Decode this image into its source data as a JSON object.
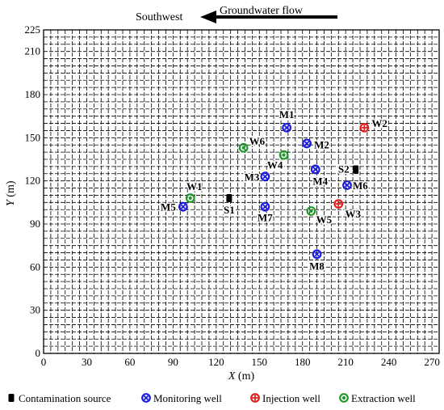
{
  "chart_data": {
    "type": "scatter",
    "title": "",
    "xlabel": "X (m)",
    "ylabel": "Y (m)",
    "xlim": [
      0,
      275
    ],
    "ylim": [
      0,
      225
    ],
    "xticks": [
      0,
      30,
      60,
      90,
      120,
      150,
      180,
      210,
      240,
      270
    ],
    "yticks": [
      0,
      30,
      60,
      90,
      120,
      150,
      180,
      210,
      225
    ],
    "grid": true,
    "flow_annotation": {
      "label": "Groundwater flow",
      "direction_label": "Southwest"
    },
    "series": [
      {
        "name": "Contamination source",
        "kind": "source",
        "color": "#000000",
        "points": [
          {
            "label": "S1",
            "x": 129,
            "y": 108
          },
          {
            "label": "S2",
            "x": 217,
            "y": 128
          }
        ]
      },
      {
        "name": "Monitoring well",
        "kind": "monitoring",
        "color": "#1c1cdc",
        "points": [
          {
            "label": "M1",
            "x": 169,
            "y": 157
          },
          {
            "label": "M2",
            "x": 183,
            "y": 146
          },
          {
            "label": "M3",
            "x": 154,
            "y": 123
          },
          {
            "label": "M4",
            "x": 189,
            "y": 128
          },
          {
            "label": "M5",
            "x": 97,
            "y": 102
          },
          {
            "label": "M6",
            "x": 211,
            "y": 117
          },
          {
            "label": "M7",
            "x": 154,
            "y": 102
          },
          {
            "label": "M8",
            "x": 190,
            "y": 69
          }
        ]
      },
      {
        "name": "Injection well",
        "kind": "injection",
        "color": "#e02020",
        "points": [
          {
            "label": "W2",
            "x": 223,
            "y": 157
          },
          {
            "label": "W3",
            "x": 205,
            "y": 104
          }
        ]
      },
      {
        "name": "Extraction well",
        "kind": "extraction",
        "color": "#1f9a2a",
        "points": [
          {
            "label": "W1",
            "x": 102,
            "y": 108
          },
          {
            "label": "W4",
            "x": 167,
            "y": 138
          },
          {
            "label": "W5",
            "x": 186,
            "y": 99
          },
          {
            "label": "W6",
            "x": 139,
            "y": 143
          }
        ]
      }
    ],
    "legend": {
      "placement": "bottom",
      "items": [
        "Contamination source",
        "Monitoring well",
        "Injection well",
        "Extraction well"
      ]
    }
  }
}
